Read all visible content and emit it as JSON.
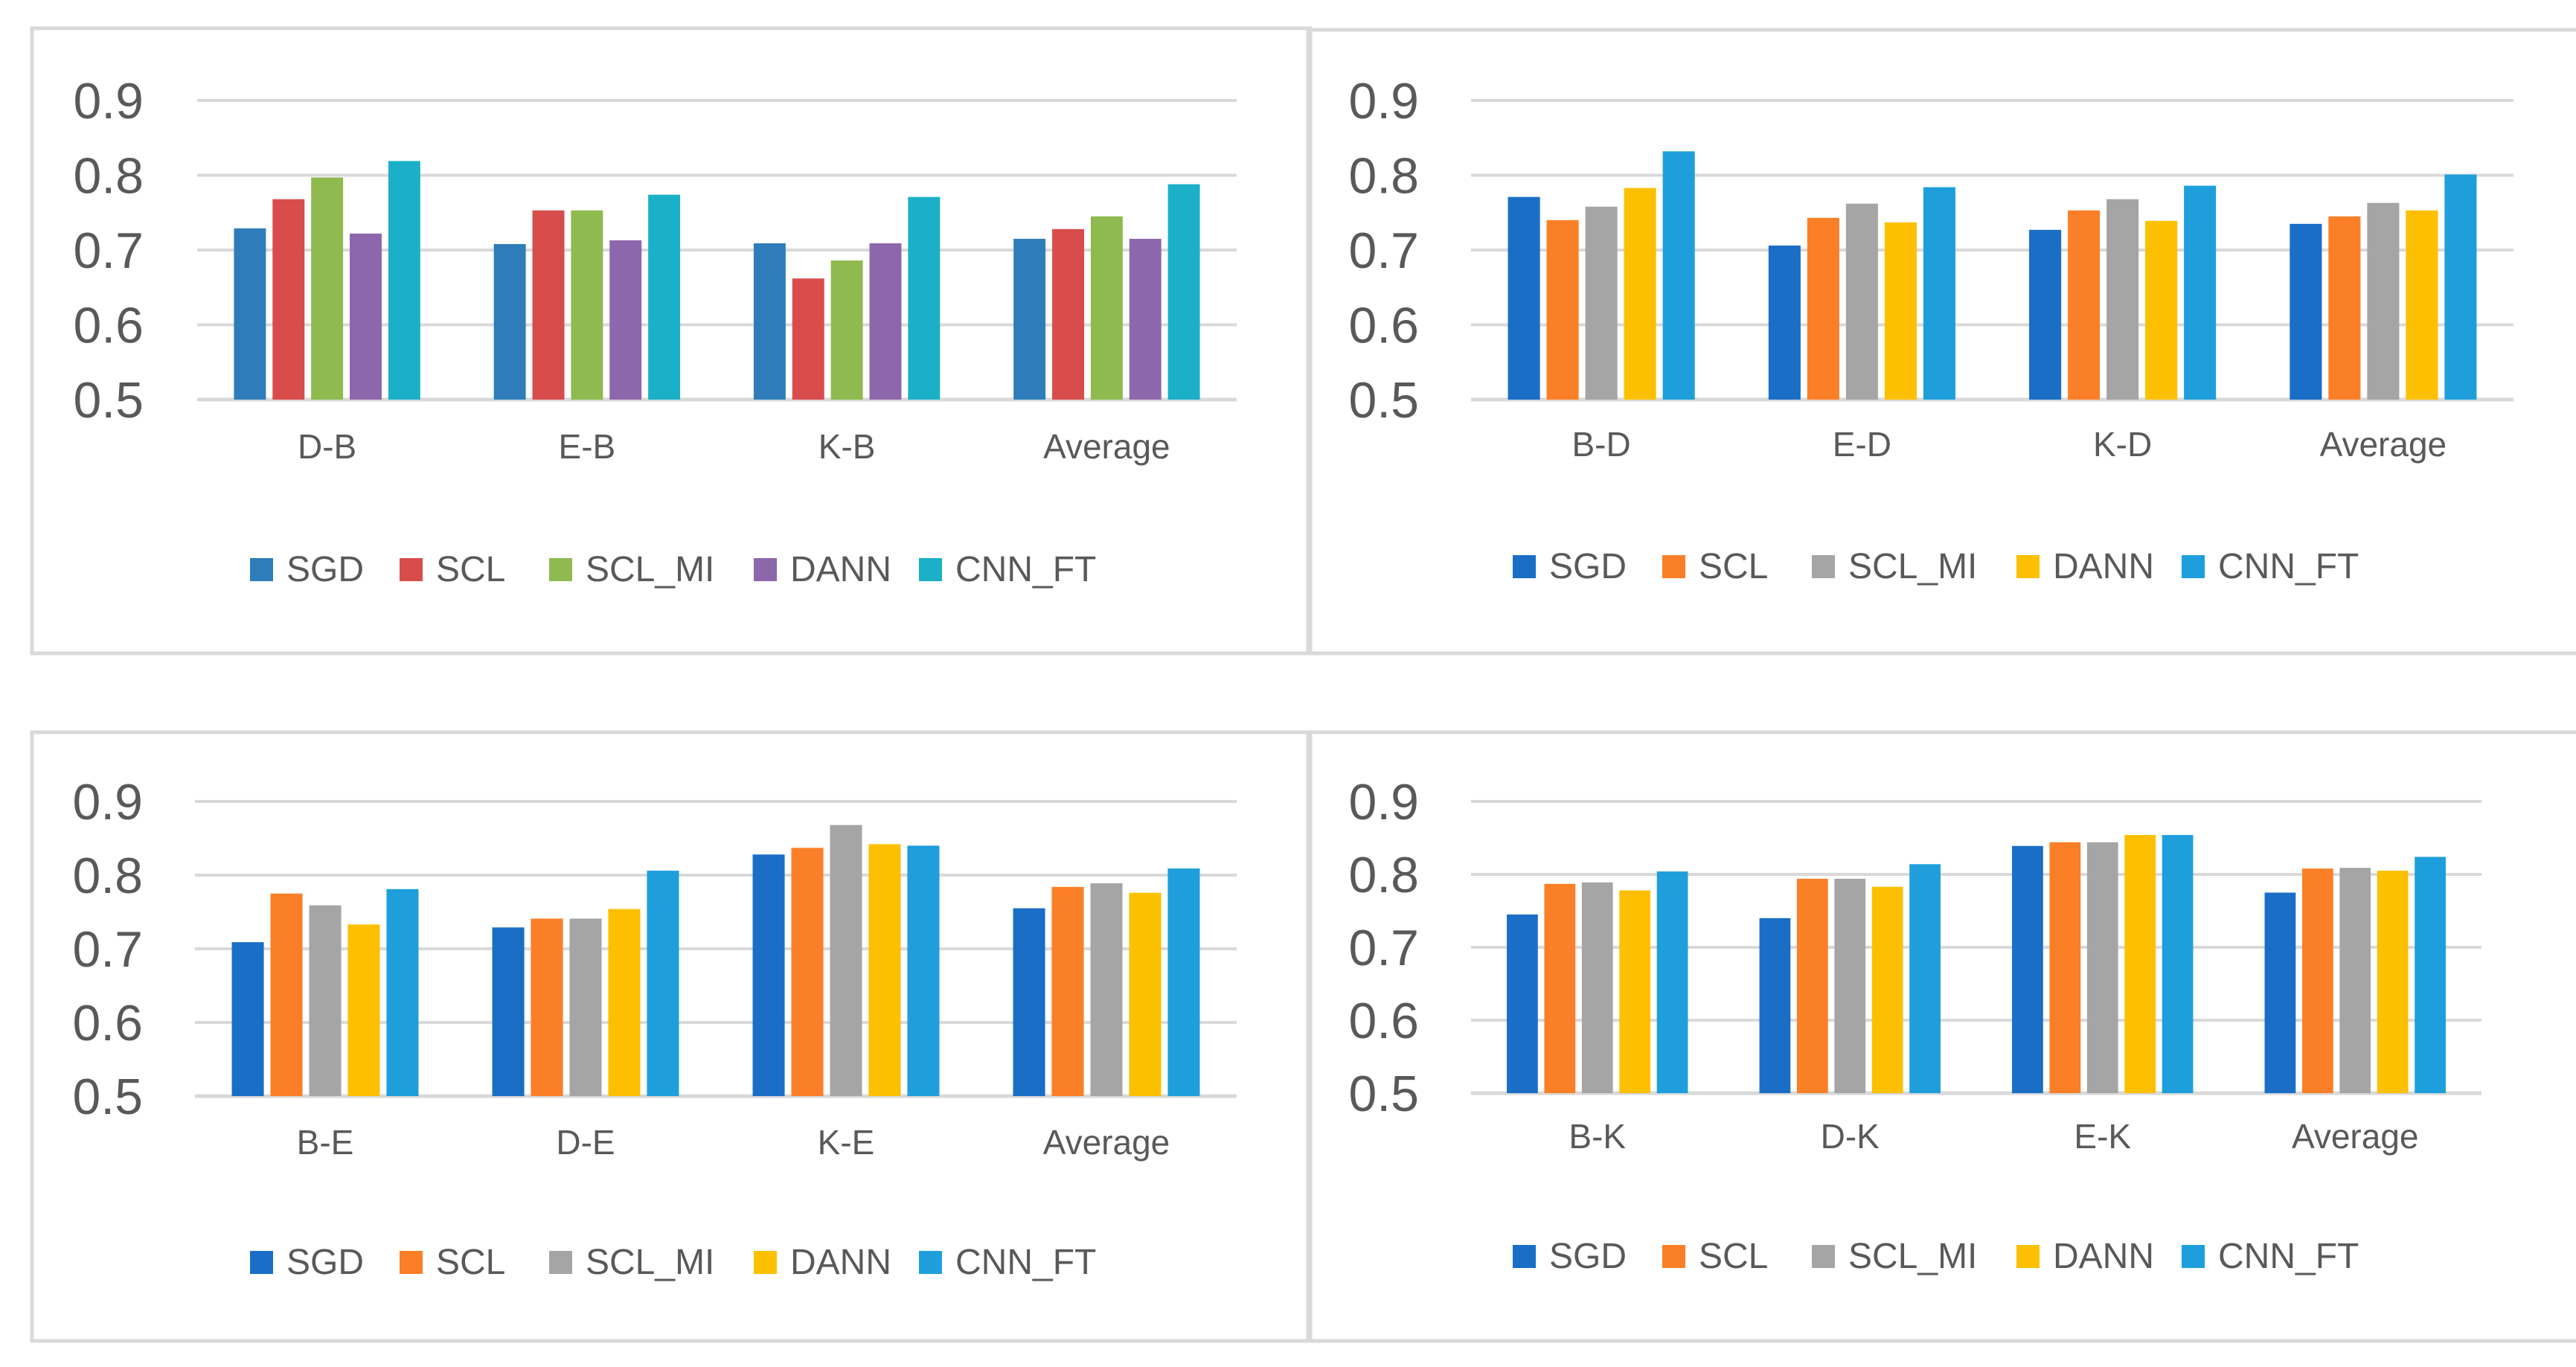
{
  "colors": {
    "panel1": [
      "#2e7dba",
      "#d94c4c",
      "#8fba4f",
      "#8d67ab",
      "#1bb0c8"
    ],
    "standard": [
      "#1a6ec6",
      "#fb7f27",
      "#a5a5a5",
      "#fdc000",
      "#1e9fdc"
    ],
    "grid": "#d9d9d9",
    "panel_border": "#d9d9d9",
    "axis_text": "#595959"
  },
  "chart_data": [
    {
      "type": "bar",
      "categories": [
        "D-B",
        "E-B",
        "K-B",
        "Average"
      ],
      "series": [
        {
          "name": "SGD",
          "values": [
            0.729,
            0.708,
            0.709,
            0.715
          ]
        },
        {
          "name": "SCL",
          "values": [
            0.768,
            0.753,
            0.662,
            0.728
          ]
        },
        {
          "name": "SCL_MI",
          "values": [
            0.797,
            0.753,
            0.686,
            0.745
          ]
        },
        {
          "name": "DANN",
          "values": [
            0.722,
            0.713,
            0.709,
            0.715
          ]
        },
        {
          "name": "CNN_FT",
          "values": [
            0.819,
            0.774,
            0.771,
            0.788
          ]
        }
      ],
      "yticks": [
        "0.5",
        "0.6",
        "0.7",
        "0.8",
        "0.9"
      ],
      "ylim": [
        0.5,
        0.9
      ],
      "grid": true,
      "legend": "bottom",
      "palette": "panel1"
    },
    {
      "type": "bar",
      "categories": [
        "B-D",
        "E-D",
        "K-D",
        "Average"
      ],
      "series": [
        {
          "name": "SGD",
          "values": [
            0.771,
            0.706,
            0.727,
            0.735
          ]
        },
        {
          "name": "SCL",
          "values": [
            0.74,
            0.743,
            0.753,
            0.745
          ]
        },
        {
          "name": "SCL_MI",
          "values": [
            0.758,
            0.762,
            0.768,
            0.763
          ]
        },
        {
          "name": "DANN",
          "values": [
            0.783,
            0.737,
            0.739,
            0.753
          ]
        },
        {
          "name": "CNN_FT",
          "values": [
            0.832,
            0.784,
            0.786,
            0.801
          ]
        }
      ],
      "yticks": [
        "0.5",
        "0.6",
        "0.7",
        "0.8",
        "0.9"
      ],
      "ylim": [
        0.5,
        0.9
      ],
      "grid": true,
      "legend": "bottom",
      "palette": "standard"
    },
    {
      "type": "bar",
      "categories": [
        "B-E",
        "D-E",
        "K-E",
        "Average"
      ],
      "series": [
        {
          "name": "SGD",
          "values": [
            0.709,
            0.729,
            0.828,
            0.755
          ]
        },
        {
          "name": "SCL",
          "values": [
            0.775,
            0.741,
            0.837,
            0.784
          ]
        },
        {
          "name": "SCL_MI",
          "values": [
            0.759,
            0.741,
            0.868,
            0.789
          ]
        },
        {
          "name": "DANN",
          "values": [
            0.733,
            0.754,
            0.842,
            0.776
          ]
        },
        {
          "name": "CNN_FT",
          "values": [
            0.781,
            0.806,
            0.84,
            0.809
          ]
        }
      ],
      "yticks": [
        "0.5",
        "0.6",
        "0.7",
        "0.8",
        "0.9"
      ],
      "ylim": [
        0.5,
        0.9
      ],
      "grid": true,
      "legend": "bottom",
      "palette": "standard"
    },
    {
      "type": "bar",
      "categories": [
        "B-K",
        "D-K",
        "E-K",
        "Average"
      ],
      "series": [
        {
          "name": "SGD",
          "values": [
            0.745,
            0.74,
            0.839,
            0.775
          ]
        },
        {
          "name": "SCL",
          "values": [
            0.787,
            0.794,
            0.844,
            0.808
          ]
        },
        {
          "name": "SCL_MI",
          "values": [
            0.789,
            0.794,
            0.844,
            0.809
          ]
        },
        {
          "name": "DANN",
          "values": [
            0.778,
            0.783,
            0.854,
            0.805
          ]
        },
        {
          "name": "CNN_FT",
          "values": [
            0.804,
            0.814,
            0.854,
            0.824
          ]
        }
      ],
      "yticks": [
        "0.5",
        "0.6",
        "0.7",
        "0.8",
        "0.9"
      ],
      "ylim": [
        0.5,
        0.9
      ],
      "grid": true,
      "legend": "bottom",
      "palette": "standard"
    }
  ]
}
